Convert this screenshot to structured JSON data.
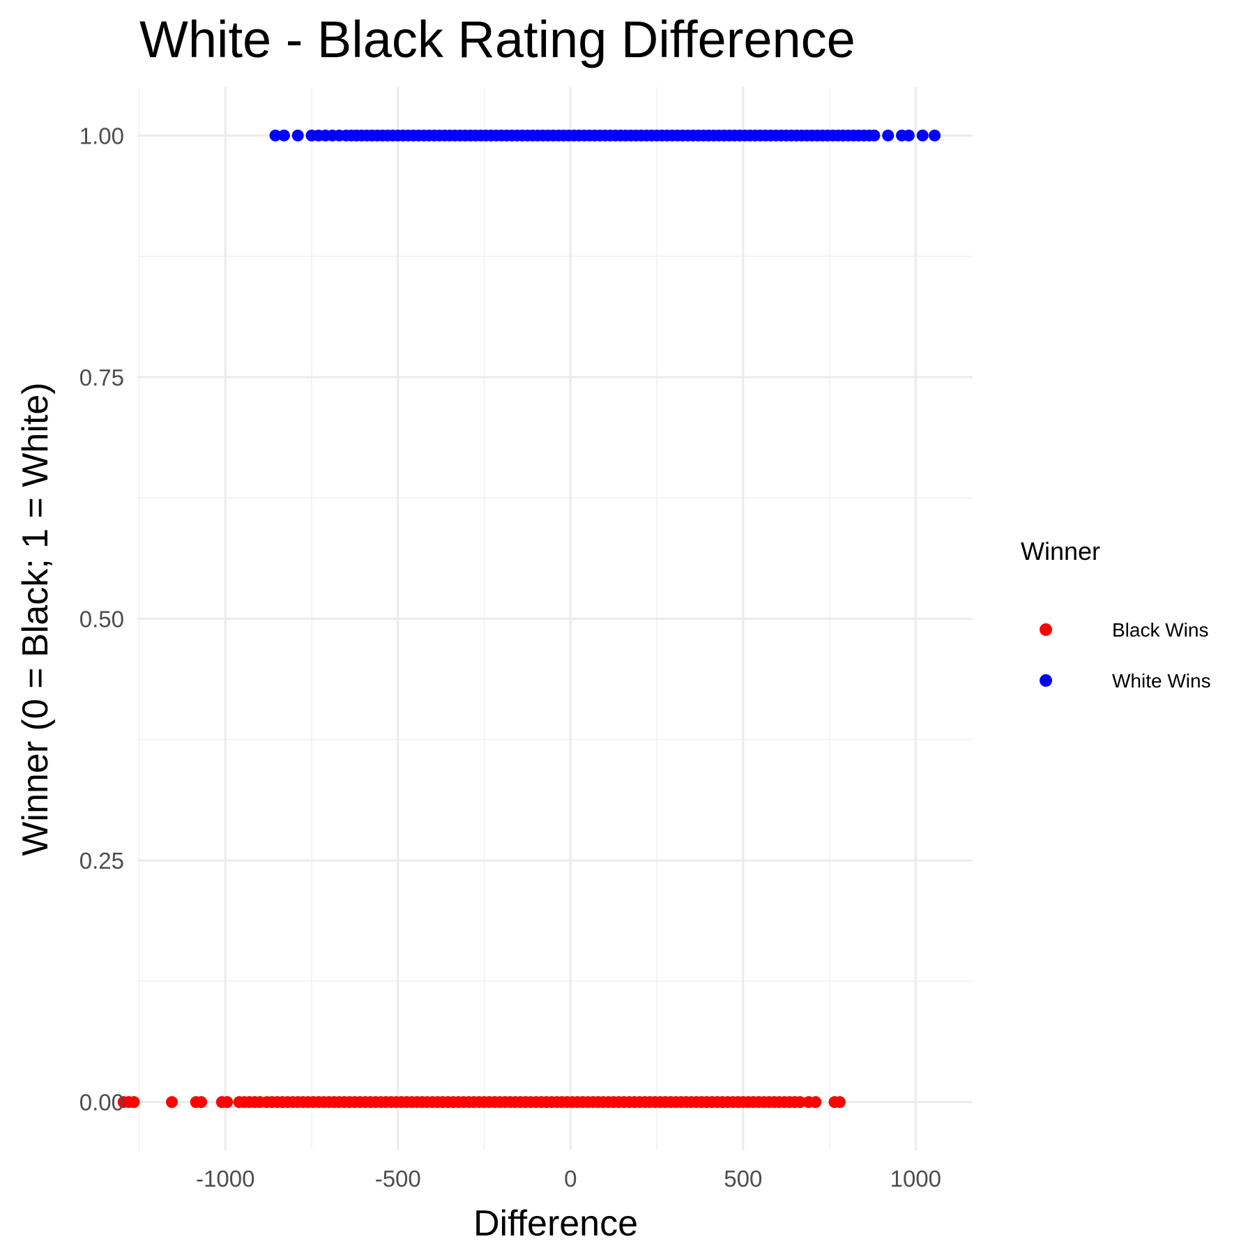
{
  "chart_data": {
    "type": "scatter",
    "title": "White - Black Rating Difference",
    "xlabel": "Difference",
    "ylabel": "Winner (0 = Black; 1 = White)",
    "xlim": [
      -1255,
      1165
    ],
    "ylim": [
      -0.05,
      1.05
    ],
    "x_ticks": [
      -1000,
      -500,
      0,
      500,
      1000
    ],
    "x_tick_labels": [
      "-1000",
      "-500",
      "0",
      "500",
      "1000"
    ],
    "y_ticks": [
      0,
      0.25,
      0.5,
      0.75,
      1
    ],
    "y_tick_labels": [
      "0.00",
      "0.25",
      "0.50",
      "0.75",
      "1.00"
    ],
    "grid": true,
    "legend": {
      "title": "Winner",
      "placement": "right",
      "entries": [
        {
          "label": "Black Wins",
          "color": "#ff0000"
        },
        {
          "label": "White Wins",
          "color": "#0000ff"
        }
      ]
    },
    "series": [
      {
        "name": "Black Wins",
        "color": "#ff0000",
        "y": 0,
        "x": [
          -1295,
          -1280,
          -1265,
          -1155,
          -1085,
          -1070,
          -1010,
          -995,
          -960,
          -945,
          -930,
          -915,
          -900,
          -880,
          -865,
          -850,
          -835,
          -820,
          -805,
          -790,
          -775,
          -760,
          -745,
          -730,
          -715,
          -700,
          -685,
          -670,
          -655,
          -640,
          -625,
          -610,
          -595,
          -580,
          -565,
          -550,
          -535,
          -520,
          -505,
          -490,
          -475,
          -460,
          -445,
          -430,
          -415,
          -400,
          -385,
          -370,
          -355,
          -340,
          -325,
          -310,
          -295,
          -280,
          -265,
          -250,
          -235,
          -220,
          -205,
          -190,
          -175,
          -160,
          -145,
          -130,
          -115,
          -100,
          -85,
          -70,
          -55,
          -40,
          -25,
          -10,
          5,
          20,
          35,
          50,
          65,
          80,
          95,
          110,
          125,
          140,
          155,
          170,
          185,
          200,
          215,
          230,
          245,
          260,
          275,
          290,
          305,
          320,
          335,
          350,
          365,
          380,
          395,
          410,
          425,
          440,
          455,
          470,
          485,
          500,
          515,
          530,
          545,
          560,
          575,
          590,
          605,
          620,
          635,
          650,
          665,
          690,
          710,
          765,
          780
        ]
      },
      {
        "name": "White Wins",
        "color": "#0000ff",
        "y": 1,
        "x": [
          -855,
          -830,
          -790,
          -750,
          -730,
          -710,
          -690,
          -670,
          -650,
          -635,
          -620,
          -605,
          -590,
          -575,
          -560,
          -545,
          -530,
          -515,
          -500,
          -485,
          -470,
          -455,
          -440,
          -425,
          -410,
          -395,
          -380,
          -365,
          -350,
          -335,
          -320,
          -305,
          -290,
          -275,
          -260,
          -245,
          -230,
          -215,
          -200,
          -185,
          -170,
          -155,
          -140,
          -125,
          -110,
          -95,
          -80,
          -65,
          -50,
          -35,
          -20,
          -5,
          10,
          25,
          40,
          55,
          70,
          85,
          100,
          115,
          130,
          145,
          160,
          175,
          190,
          205,
          220,
          235,
          250,
          265,
          280,
          295,
          310,
          325,
          340,
          355,
          370,
          385,
          400,
          415,
          430,
          445,
          460,
          475,
          490,
          505,
          520,
          535,
          550,
          565,
          580,
          595,
          610,
          625,
          640,
          655,
          670,
          685,
          700,
          715,
          730,
          745,
          760,
          775,
          790,
          805,
          820,
          835,
          850,
          865,
          880,
          920,
          960,
          980,
          1020,
          1055
        ]
      }
    ]
  }
}
